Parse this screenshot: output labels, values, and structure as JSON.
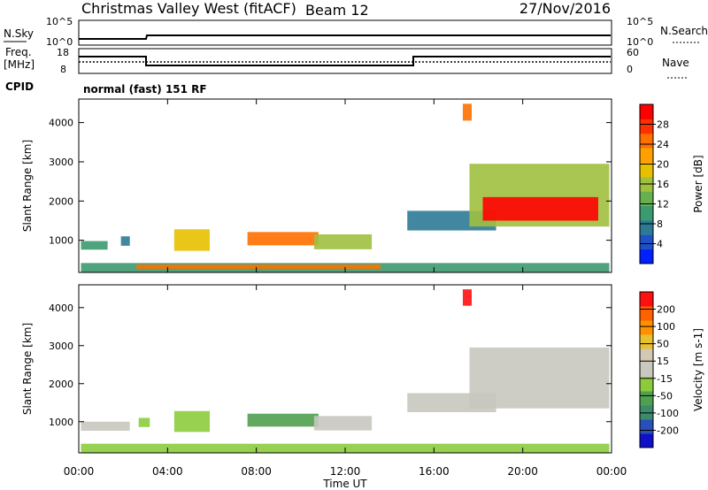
{
  "header": {
    "station": "Christmas Valley West (fitACF)",
    "beam": "Beam 12",
    "date": "27/Nov/2016"
  },
  "panels": {
    "nsky": {
      "label": "N.Sky",
      "ticks": [
        "10^5",
        "10^0"
      ]
    },
    "nsearch": {
      "label": "N.Search",
      "ticks": [
        "10^5",
        "10^0"
      ]
    },
    "freq": {
      "label_line1": "Freq.",
      "label_line2": "[MHz]",
      "ticks": [
        "18",
        "8"
      ]
    },
    "nave": {
      "label": "Nave",
      "ticks": [
        "60",
        "0"
      ]
    },
    "cpid": {
      "label": "CPID",
      "value": "normal (fast) 151 RF"
    }
  },
  "colors": {
    "power_scale": [
      "#0020ff",
      "#1e50c8",
      "#2c7a96",
      "#3c9a70",
      "#66b050",
      "#a0c040",
      "#e8c000",
      "#ffa000",
      "#ff7000",
      "#ff3000",
      "#ff0000"
    ],
    "velocity_scale": [
      "#1010c8",
      "#2850b8",
      "#3c8c6c",
      "#50a050",
      "#8ccc3c",
      "#c8c8c0",
      "#d2c8b4",
      "#e8c030",
      "#ff9000",
      "#ff6000",
      "#ff1010"
    ]
  },
  "chart_data": [
    {
      "type": "heatmap",
      "name": "power",
      "x_ticks": [
        "00:00",
        "04:00",
        "08:00",
        "12:00",
        "16:00",
        "20:00",
        "00:00"
      ],
      "xlim": [
        0,
        24
      ],
      "ylabel": "Slant Range [km]",
      "y_ticks": [
        4000,
        3000,
        2000,
        1000
      ],
      "ylim": [
        180,
        4600
      ],
      "colorbar": {
        "label": "Power [dB]",
        "ticks": [
          "28",
          "24",
          "20",
          "16",
          "12",
          "8",
          "4"
        ],
        "range": [
          0,
          30
        ]
      },
      "regions": [
        {
          "t0": 0.1,
          "t1": 23.9,
          "r0": 190,
          "r1": 420,
          "value": 10
        },
        {
          "t0": 2.6,
          "t1": 13.6,
          "r0": 270,
          "r1": 380,
          "value": 24
        },
        {
          "t0": 0.1,
          "t1": 1.3,
          "r0": 760,
          "r1": 980,
          "value": 10
        },
        {
          "t0": 1.9,
          "t1": 2.3,
          "r0": 860,
          "r1": 1100,
          "value": 8
        },
        {
          "t0": 4.3,
          "t1": 5.9,
          "r0": 730,
          "r1": 1280,
          "value": 18
        },
        {
          "t0": 7.6,
          "t1": 10.8,
          "r0": 870,
          "r1": 1210,
          "value": 22
        },
        {
          "t0": 10.6,
          "t1": 13.2,
          "r0": 770,
          "r1": 1150,
          "value": 16
        },
        {
          "t0": 14.8,
          "t1": 18.8,
          "r0": 1250,
          "r1": 1750,
          "value": 8
        },
        {
          "t0": 17.3,
          "t1": 17.7,
          "r0": 4050,
          "r1": 4480,
          "value": 22
        },
        {
          "t0": 17.6,
          "t1": 23.9,
          "r0": 1350,
          "r1": 2950,
          "value": 14
        },
        {
          "t0": 18.2,
          "t1": 23.4,
          "r0": 1500,
          "r1": 2100,
          "value": 28
        }
      ]
    },
    {
      "type": "heatmap",
      "name": "velocity",
      "x_ticks": [
        "00:00",
        "04:00",
        "08:00",
        "12:00",
        "16:00",
        "20:00",
        "00:00"
      ],
      "xlim": [
        0,
        24
      ],
      "xlabel": "Time UT",
      "ylabel": "Slant Range [km]",
      "y_ticks": [
        4000,
        3000,
        2000,
        1000
      ],
      "ylim": [
        180,
        4600
      ],
      "colorbar": {
        "label": "Velocity [m s-1]",
        "ticks": [
          "200",
          "100",
          "50",
          "15",
          "-15",
          "-50",
          "-100",
          "-200"
        ],
        "range": [
          -250,
          250
        ]
      },
      "regions": [
        {
          "t0": 0.1,
          "t1": 23.9,
          "r0": 190,
          "r1": 420,
          "value": -30
        },
        {
          "t0": 0.1,
          "t1": 2.3,
          "r0": 760,
          "r1": 1000,
          "value": -20
        },
        {
          "t0": 2.7,
          "t1": 3.2,
          "r0": 860,
          "r1": 1100,
          "value": -60
        },
        {
          "t0": 4.3,
          "t1": 5.9,
          "r0": 730,
          "r1": 1280,
          "value": -40
        },
        {
          "t0": 7.6,
          "t1": 10.8,
          "r0": 870,
          "r1": 1210,
          "value": -90
        },
        {
          "t0": 10.6,
          "t1": 13.2,
          "r0": 770,
          "r1": 1150,
          "value": 0
        },
        {
          "t0": 14.8,
          "t1": 18.8,
          "r0": 1250,
          "r1": 1750,
          "value": 0
        },
        {
          "t0": 17.3,
          "t1": 17.7,
          "r0": 4050,
          "r1": 4480,
          "value": 220
        },
        {
          "t0": 17.6,
          "t1": 23.9,
          "r0": 1350,
          "r1": 2950,
          "value": 5
        }
      ]
    }
  ]
}
